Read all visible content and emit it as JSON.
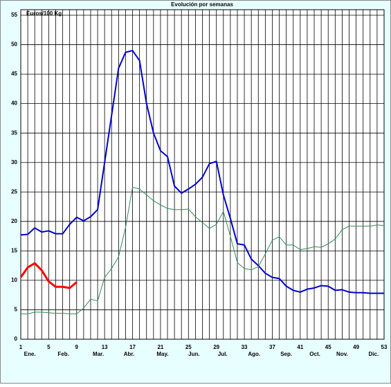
{
  "chart_data": {
    "type": "line",
    "title": "Evolución por semanas",
    "ylabel": "Euros/100 Kg",
    "x": [
      1,
      2,
      3,
      4,
      5,
      6,
      7,
      8,
      9,
      10,
      11,
      12,
      13,
      14,
      15,
      16,
      17,
      18,
      19,
      20,
      21,
      22,
      23,
      24,
      25,
      26,
      27,
      28,
      29,
      30,
      31,
      32,
      33,
      34,
      35,
      36,
      37,
      38,
      39,
      40,
      41,
      42,
      43,
      44,
      45,
      46,
      47,
      48,
      49,
      50,
      51,
      52,
      53
    ],
    "series": [
      {
        "color": "#0000cc",
        "width": 2,
        "values": [
          17.7,
          17.8,
          18.9,
          18.2,
          18.4,
          17.9,
          17.9,
          19.5,
          20.7,
          20.1,
          20.8,
          22,
          30,
          38,
          46,
          48.7,
          49,
          47.3,
          40,
          35,
          32,
          31,
          26,
          24.8,
          25.5,
          26.3,
          27.5,
          29.8,
          30.2,
          24.5,
          20.5,
          16.2,
          16,
          13.6,
          12.5,
          11.2,
          10.5,
          10.3,
          9,
          8.3,
          8,
          8.5,
          8.7,
          9.1,
          9,
          8.3,
          8.4,
          8,
          7.9,
          7.9,
          7.8,
          7.8,
          7.8
        ]
      },
      {
        "color": "#2e8b57",
        "width": 1,
        "values": [
          4.3,
          4.3,
          4.6,
          4.6,
          4.5,
          4.4,
          4.4,
          4.3,
          4.3,
          5.3,
          6.8,
          6.5,
          10.5,
          12,
          14,
          19,
          25.8,
          25.5,
          24.5,
          23.5,
          22.8,
          22.2,
          22,
          22,
          22.1,
          20.8,
          19.8,
          18.8,
          19.5,
          21.7,
          17.5,
          13,
          12,
          11.8,
          12.3,
          14.5,
          16.8,
          17.4,
          16,
          16,
          15.2,
          15.4,
          15.7,
          15.6,
          16.2,
          17,
          18.6,
          19.2,
          19.2,
          19.2,
          19.2,
          19.4,
          19.3
        ]
      },
      {
        "color": "#ff0000",
        "width": 3,
        "values": [
          10.5,
          12.2,
          12.9,
          11.7,
          9.8,
          8.9,
          8.9,
          8.7,
          9.7,
          null,
          null,
          null,
          null,
          null,
          null,
          null,
          null,
          null,
          null,
          null,
          null,
          null,
          null,
          null,
          null,
          null,
          null,
          null,
          null,
          null,
          null,
          null,
          null,
          null,
          null,
          null,
          null,
          null,
          null,
          null,
          null,
          null,
          null,
          null,
          null,
          null,
          null,
          null,
          null,
          null,
          null,
          null,
          null
        ]
      }
    ],
    "xlim": [
      1,
      53
    ],
    "xticks": [
      1,
      5,
      9,
      13,
      17,
      21,
      25,
      29,
      33,
      37,
      41,
      45,
      49,
      53
    ],
    "month_labels": [
      {
        "value": 2.3,
        "label": "Ene."
      },
      {
        "value": 7.1,
        "label": "Feb."
      },
      {
        "value": 12.1,
        "label": "Mar."
      },
      {
        "value": 16.5,
        "label": "Abr."
      },
      {
        "value": 21.3,
        "label": "May."
      },
      {
        "value": 25.8,
        "label": "Jun."
      },
      {
        "value": 29.9,
        "label": "Jul."
      },
      {
        "value": 34.4,
        "label": "Ago."
      },
      {
        "value": 39,
        "label": "Sep."
      },
      {
        "value": 43.1,
        "label": "Oct."
      },
      {
        "value": 47,
        "label": "Nov."
      },
      {
        "value": 51.5,
        "label": "Dic."
      }
    ],
    "ylim": [
      0,
      55
    ],
    "yticks": [
      0,
      5,
      10,
      15,
      20,
      25,
      30,
      35,
      40,
      45,
      50,
      55
    ],
    "grid": true
  }
}
